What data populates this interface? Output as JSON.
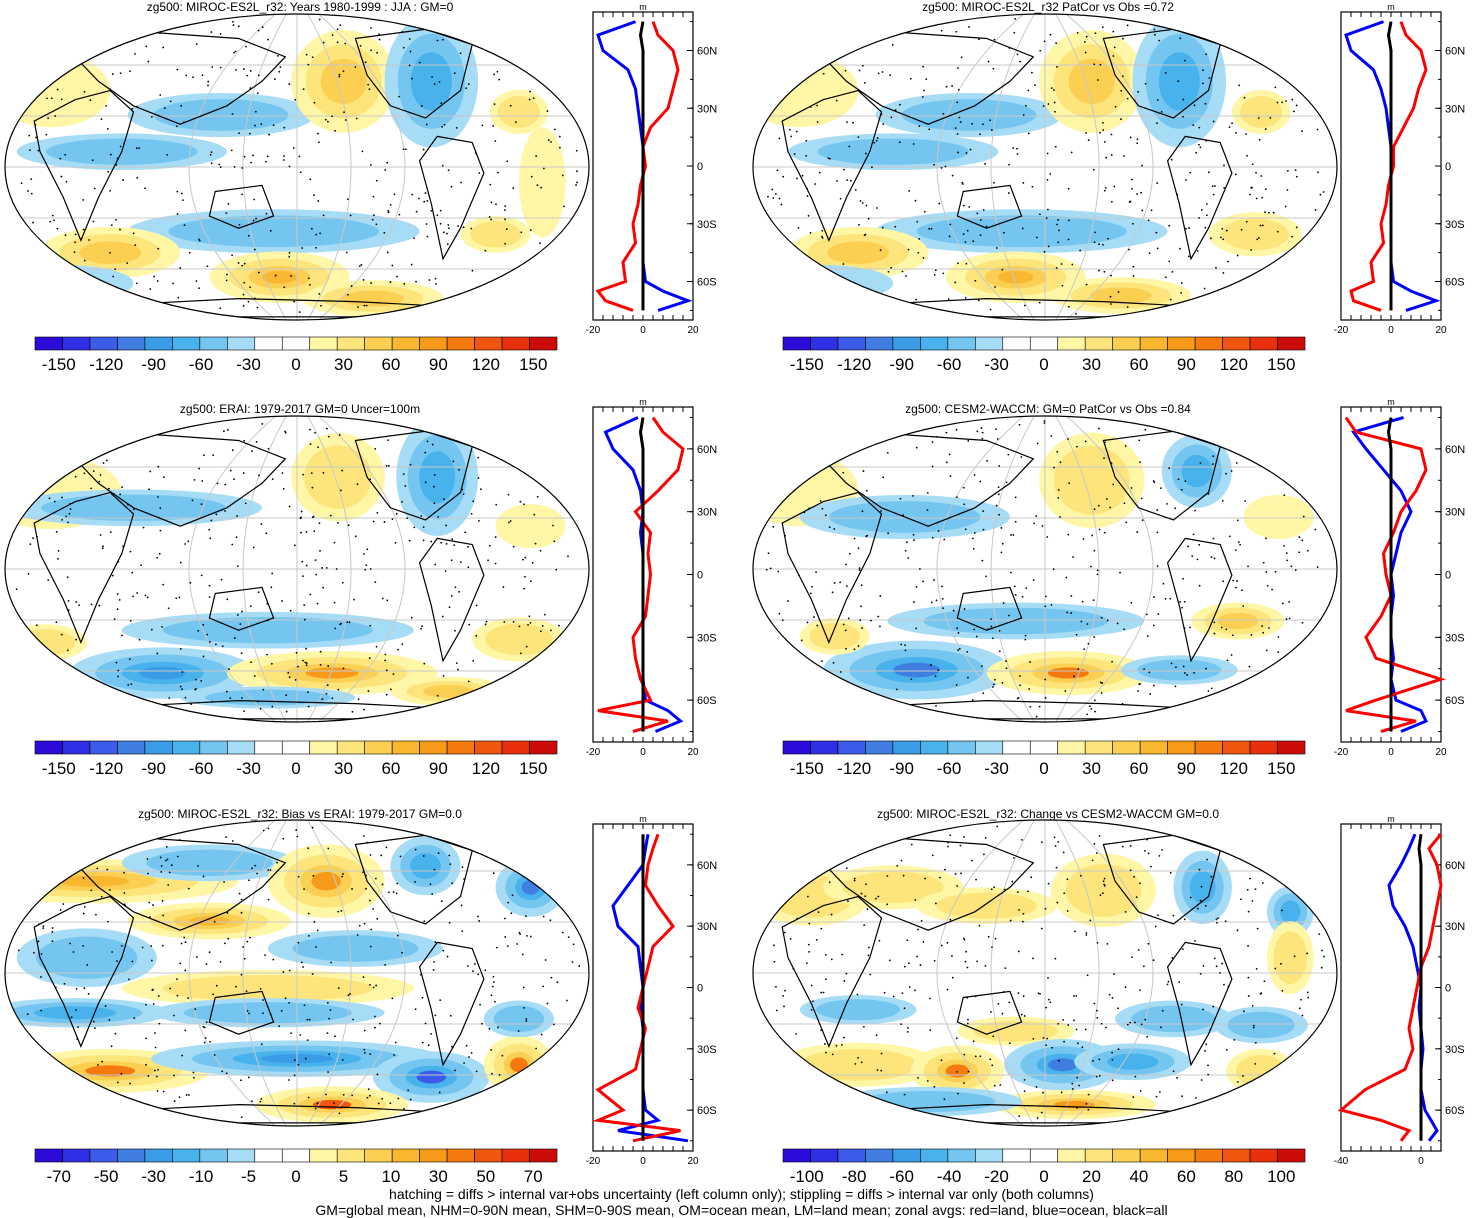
{
  "colors": {
    "ocean": "#0000ff",
    "land": "#ff0000",
    "all": "#000000"
  },
  "zonal_units": "m",
  "lat_labels": [
    "60N",
    "30N",
    "0",
    "30S",
    "60S"
  ],
  "colorbars": {
    "cb1": {
      "labels": [
        "-150",
        "-120",
        "-90",
        "-60",
        "-30",
        "0",
        "30",
        "60",
        "90",
        "120",
        "150"
      ],
      "colors": [
        "#2a0bd8",
        "#2f2fe6",
        "#3b5be8",
        "#3f7ee0",
        "#3a9ce6",
        "#48b2ec",
        "#74c6f0",
        "#a6dcf5",
        "#ffffff",
        "#ffffff",
        "#fff6a6",
        "#fde57c",
        "#fbd052",
        "#f9b730",
        "#f79a1a",
        "#f47a10",
        "#f0560e",
        "#e8300c",
        "#cc0c08"
      ]
    },
    "cb2": {
      "labels": [
        "-70",
        "-50",
        "-30",
        "-10",
        "-5",
        "0",
        "5",
        "10",
        "30",
        "50",
        "70"
      ],
      "colors": [
        "#2a0bd8",
        "#2f2fe6",
        "#3b5be8",
        "#3f7ee0",
        "#3a9ce6",
        "#48b2ec",
        "#74c6f0",
        "#a6dcf5",
        "#ffffff",
        "#ffffff",
        "#fff6a6",
        "#fde57c",
        "#fbd052",
        "#f9b730",
        "#f79a1a",
        "#f47a10",
        "#f0560e",
        "#e8300c",
        "#cc0c08"
      ]
    },
    "cb3": {
      "labels": [
        "-100",
        "-80",
        "-60",
        "-40",
        "-20",
        "0",
        "20",
        "40",
        "60",
        "80",
        "100"
      ],
      "colors": [
        "#2a0bd8",
        "#2f2fe6",
        "#3b5be8",
        "#3f7ee0",
        "#3a9ce6",
        "#48b2ec",
        "#74c6f0",
        "#a6dcf5",
        "#ffffff",
        "#ffffff",
        "#fff6a6",
        "#fde57c",
        "#fbd052",
        "#f9b730",
        "#f79a1a",
        "#f47a10",
        "#f0560e",
        "#e8300c",
        "#cc0c08"
      ]
    }
  },
  "panels": [
    {
      "title": "zg500: MIROC-ES2L_r32: Years 1980-1999 : JJA : GM=0",
      "colorbar": "cb1",
      "zonal_ticks": [
        "-20",
        "0",
        "20"
      ],
      "zonal_range": [
        -20,
        20
      ]
    },
    {
      "title": "zg500: MIROC-ES2L_r32 PatCor vs Obs =0.72",
      "colorbar": "cb1",
      "zonal_ticks": [
        "-20",
        "0",
        "20"
      ],
      "zonal_range": [
        -20,
        20
      ]
    },
    {
      "title": "zg500: ERAI: 1979-2017 GM=0 Uncer=100m",
      "colorbar": "cb1",
      "zonal_ticks": [
        "-20",
        "0",
        "20"
      ],
      "zonal_range": [
        -20,
        20
      ]
    },
    {
      "title": "zg500: CESM2-WACCM: GM=0 PatCor vs Obs =0.84",
      "colorbar": "cb1",
      "zonal_ticks": [
        "-20",
        "0",
        "20"
      ],
      "zonal_range": [
        -20,
        20
      ]
    },
    {
      "title": "zg500: MIROC-ES2L_r32: Bias vs ERAI: 1979-2017 GM=0.0",
      "colorbar": "cb2",
      "zonal_ticks": [
        "-20",
        "0",
        "20"
      ],
      "zonal_range": [
        -20,
        20
      ]
    },
    {
      "title": "zg500: MIROC-ES2L_r32: Change vs CESM2-WACCM GM=0.0",
      "colorbar": "cb3",
      "zonal_ticks": [
        "-40",
        "0"
      ],
      "zonal_range": [
        -40,
        10
      ]
    }
  ],
  "footer": {
    "line1": "hatching = diffs > internal var+obs uncertainty (left column only); stippling = diffs > internal var only (both columns)",
    "line2": "GM=global mean, NHM=0-90N mean, SHM=0-90S mean, OM=ocean mean, LM=land mean; zonal avgs: red=land, blue=ocean, black=all"
  },
  "chart_data": [
    {
      "type": "heatmap",
      "title": "zg500: MIROC-ES2L_r32: Years 1980-1999 : JJA : GM=0",
      "units": "m",
      "colorbar_ticks": [
        -150,
        -120,
        -90,
        -60,
        -30,
        0,
        30,
        60,
        90,
        120,
        150
      ],
      "zonal_mean": {
        "xlabel": "m",
        "xlim": [
          -20,
          20
        ],
        "lat": [
          75,
          68,
          60,
          50,
          40,
          30,
          20,
          10,
          0,
          -10,
          -20,
          -30,
          -40,
          -50,
          -60,
          -65,
          -70,
          -75
        ],
        "series": [
          {
            "name": "ocean",
            "values": [
              -3,
              -18,
              -16,
              -6,
              -3,
              -2,
              -1,
              0,
              0,
              0,
              0,
              0,
              0,
              0,
              1,
              8,
              18,
              6
            ]
          },
          {
            "name": "land",
            "values": [
              4,
              6,
              12,
              14,
              12,
              10,
              3,
              0,
              1,
              -1,
              -2,
              -4,
              -3,
              -8,
              -7,
              -18,
              -15,
              -4
            ]
          },
          {
            "name": "all",
            "values": [
              0,
              -1,
              0,
              0,
              0,
              0,
              0,
              0,
              0,
              0,
              0,
              0,
              0,
              0,
              0,
              0,
              0,
              0
            ]
          }
        ]
      }
    },
    {
      "type": "heatmap",
      "title": "zg500: MIROC-ES2L_r32 PatCor vs Obs =0.72",
      "units": "m",
      "colorbar_ticks": [
        -150,
        -120,
        -90,
        -60,
        -30,
        0,
        30,
        60,
        90,
        120,
        150
      ],
      "zonal_mean": {
        "xlabel": "m",
        "xlim": [
          -20,
          20
        ],
        "lat": [
          75,
          68,
          60,
          50,
          40,
          30,
          20,
          10,
          0,
          -10,
          -20,
          -30,
          -40,
          -50,
          -60,
          -65,
          -70,
          -75
        ],
        "series": [
          {
            "name": "ocean",
            "values": [
              -3,
              -18,
              -16,
              -7,
              -4,
              -2,
              -1,
              0,
              0,
              0,
              0,
              0,
              0,
              0,
              1,
              8,
              18,
              6
            ]
          },
          {
            "name": "land",
            "values": [
              4,
              6,
              12,
              14,
              11,
              9,
              5,
              1,
              1,
              -1,
              -2,
              -4,
              -3,
              -8,
              -7,
              -16,
              -15,
              -4
            ]
          },
          {
            "name": "all",
            "values": [
              0,
              -1,
              0,
              0,
              0,
              0,
              0,
              0,
              0,
              0,
              0,
              0,
              0,
              0,
              0,
              0,
              0,
              0
            ]
          }
        ]
      }
    },
    {
      "type": "heatmap",
      "title": "zg500: ERAI: 1979-2017 GM=0 Uncer=100m",
      "units": "m",
      "colorbar_ticks": [
        -150,
        -120,
        -90,
        -60,
        -30,
        0,
        30,
        60,
        90,
        120,
        150
      ],
      "zonal_mean": {
        "xlabel": "m",
        "xlim": [
          -20,
          20
        ],
        "lat": [
          75,
          68,
          60,
          50,
          40,
          30,
          20,
          10,
          0,
          -10,
          -20,
          -30,
          -40,
          -50,
          -60,
          -65,
          -70,
          -75
        ],
        "series": [
          {
            "name": "ocean",
            "values": [
              -2,
              -15,
              -12,
              -4,
              -1,
              0,
              -1,
              0,
              0,
              0,
              0,
              0,
              0,
              0,
              1,
              10,
              15,
              5
            ]
          },
          {
            "name": "land",
            "values": [
              4,
              8,
              16,
              14,
              6,
              -3,
              3,
              2,
              3,
              2,
              1,
              -4,
              -3,
              -1,
              3,
              -18,
              10,
              -4
            ]
          },
          {
            "name": "all",
            "values": [
              0,
              -1,
              0,
              0,
              0,
              0,
              0,
              0,
              0,
              0,
              0,
              0,
              0,
              0,
              0,
              0,
              0,
              0
            ]
          }
        ]
      }
    },
    {
      "type": "heatmap",
      "title": "zg500: CESM2-WACCM: GM=0 PatCor vs Obs =0.84",
      "units": "m",
      "colorbar_ticks": [
        -150,
        -120,
        -90,
        -60,
        -30,
        0,
        30,
        60,
        90,
        120,
        150
      ],
      "zonal_mean": {
        "xlabel": "m",
        "xlim": [
          -20,
          20
        ],
        "lat": [
          75,
          68,
          60,
          50,
          40,
          30,
          20,
          10,
          0,
          -10,
          -20,
          -30,
          -40,
          -50,
          -60,
          -65,
          -70,
          -75
        ],
        "series": [
          {
            "name": "ocean",
            "values": [
              5,
              -15,
              -10,
              -3,
              4,
              8,
              4,
              2,
              0,
              1,
              0,
              0,
              1,
              0,
              2,
              12,
              14,
              4
            ]
          },
          {
            "name": "land",
            "values": [
              -18,
              -14,
              12,
              14,
              10,
              4,
              1,
              -3,
              -2,
              0,
              -4,
              -10,
              -6,
              20,
              -6,
              -18,
              10,
              -4
            ]
          },
          {
            "name": "all",
            "values": [
              0,
              -1,
              0,
              0,
              0,
              0,
              0,
              0,
              0,
              0,
              0,
              0,
              0,
              0,
              0,
              0,
              0,
              0
            ]
          }
        ]
      }
    },
    {
      "type": "heatmap",
      "title": "zg500: MIROC-ES2L_r32: Bias vs ERAI: 1979-2017 GM=0.0",
      "units": "m",
      "colorbar_ticks": [
        -70,
        -50,
        -30,
        -10,
        -5,
        0,
        5,
        10,
        30,
        50,
        70
      ],
      "zonal_mean": {
        "xlabel": "m",
        "xlim": [
          -20,
          20
        ],
        "lat": [
          75,
          68,
          60,
          50,
          40,
          30,
          20,
          10,
          0,
          -10,
          -20,
          -30,
          -40,
          -50,
          -60,
          -65,
          -70,
          -75
        ],
        "series": [
          {
            "name": "ocean",
            "values": [
              2,
              1,
              0,
              -6,
              -12,
              -10,
              -2,
              -1,
              0,
              -1,
              0,
              0,
              0,
              0,
              1,
              6,
              -10,
              18
            ]
          },
          {
            "name": "land",
            "values": [
              6,
              4,
              2,
              1,
              6,
              12,
              4,
              2,
              0,
              -2,
              1,
              -1,
              -3,
              -18,
              -8,
              -18,
              15,
              -4
            ]
          },
          {
            "name": "all",
            "values": [
              0,
              0,
              0,
              0,
              0,
              0,
              0,
              0,
              0,
              0,
              0,
              0,
              0,
              0,
              0,
              0,
              0,
              0
            ]
          }
        ]
      }
    },
    {
      "type": "heatmap",
      "title": "zg500: MIROC-ES2L_r32: Change vs CESM2-WACCM GM=0.0",
      "units": "m",
      "colorbar_ticks": [
        -100,
        -80,
        -60,
        -40,
        -20,
        0,
        20,
        40,
        60,
        80,
        100
      ],
      "zonal_mean": {
        "xlabel": "m",
        "xlim": [
          -40,
          10
        ],
        "lat": [
          75,
          68,
          60,
          50,
          40,
          30,
          20,
          10,
          0,
          -10,
          -20,
          -30,
          -40,
          -50,
          -60,
          -65,
          -70,
          -75
        ],
        "series": [
          {
            "name": "ocean",
            "values": [
              -3,
              -6,
              -10,
              -16,
              -14,
              -8,
              -4,
              -2,
              0,
              -1,
              0,
              1,
              0,
              0,
              2,
              5,
              8,
              4
            ]
          },
          {
            "name": "land",
            "values": [
              10,
              4,
              8,
              10,
              8,
              6,
              4,
              0,
              -2,
              -4,
              -6,
              -4,
              -8,
              -28,
              -40,
              -20,
              -6,
              -10
            ]
          },
          {
            "name": "all",
            "values": [
              0,
              -1,
              0,
              0,
              0,
              0,
              0,
              0,
              0,
              0,
              0,
              0,
              0,
              0,
              0,
              0,
              0,
              0
            ]
          }
        ]
      }
    }
  ]
}
